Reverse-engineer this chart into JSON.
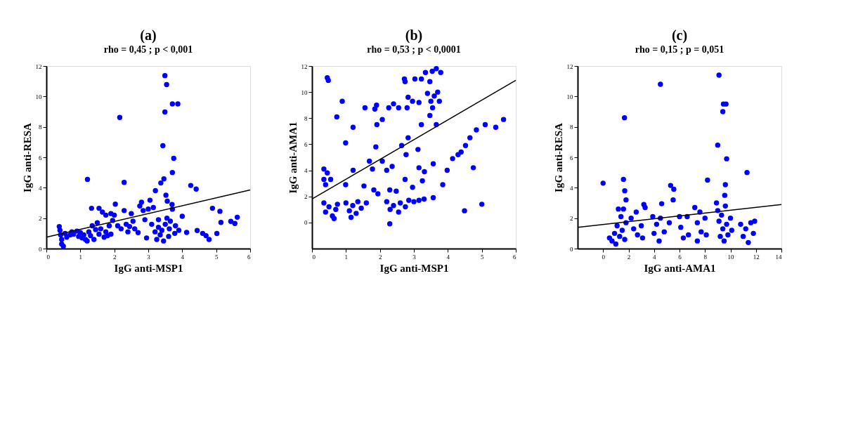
{
  "chart_data": [
    {
      "type": "scatter",
      "title": "(a)",
      "subtitle": "rho = 0,45   ; p < 0,001",
      "xlabel": "IgG anti-MSP1",
      "ylabel": "IgG anti-RESA",
      "xlim": [
        0,
        6
      ],
      "ylim": [
        0,
        12
      ],
      "xticks": [
        0,
        1,
        2,
        3,
        4,
        5,
        6
      ],
      "yticks": [
        0,
        2,
        4,
        6,
        8,
        10,
        12
      ],
      "grid": false,
      "series": [
        {
          "marker": "circle",
          "color": "#0000ff",
          "x": [
            0.38,
            0.4,
            0.42,
            0.45,
            0.45,
            0.5,
            0.55,
            0.6,
            0.7,
            0.75,
            0.8,
            0.9,
            0.95,
            1.0,
            1.05,
            1.1,
            1.15,
            1.2,
            1.25,
            1.3,
            1.35,
            1.4,
            1.45,
            1.5,
            1.55,
            1.6,
            1.7,
            1.75,
            1.8,
            1.9,
            1.85,
            1.95,
            1.21,
            1.33,
            1.55,
            1.65,
            1.75,
            1.9,
            2.0,
            2.03,
            2.16,
            2.1,
            2.2,
            2.29,
            2.29,
            2.35,
            2.4,
            2.45,
            2.5,
            2.55,
            2.6,
            2.7,
            2.75,
            2.8,
            2.85,
            2.9,
            2.95,
            3.0,
            3.05,
            3.1,
            3.15,
            3.2,
            3.21,
            3.25,
            3.3,
            3.3,
            3.35,
            3.37,
            3.4,
            3.43,
            3.45,
            3.46,
            3.49,
            3.49,
            3.5,
            3.52,
            3.54,
            3.55,
            3.56,
            3.6,
            3.62,
            3.65,
            3.7,
            3.71,
            3.71,
            3.71,
            3.75,
            3.78,
            3.8,
            3.87,
            3.9,
            4.0,
            4.13,
            4.25,
            4.41,
            4.44,
            4.6,
            4.7,
            4.79,
            4.89,
            5.02,
            5.11,
            5.14,
            5.43,
            5.55,
            5.62
          ],
          "values": [
            1.45,
            1.2,
            0.9,
            0.6,
            0.3,
            0.15,
            1.0,
            0.75,
            0.9,
            1.1,
            0.95,
            1.15,
            0.8,
            1.05,
            0.7,
            0.9,
            0.6,
            0.5,
            1.1,
            0.85,
            1.5,
            0.6,
            1.25,
            1.7,
            0.95,
            1.3,
            0.75,
            1.1,
            0.85,
            0.95,
            1.5,
            1.85,
            4.55,
            2.65,
            2.65,
            2.4,
            2.2,
            2.3,
            2.2,
            2.92,
            8.62,
            1.5,
            1.3,
            4.35,
            2.5,
            1.6,
            1.1,
            1.45,
            2.3,
            1.8,
            1.3,
            1.05,
            2.8,
            3.05,
            2.5,
            1.9,
            0.7,
            2.6,
            3.18,
            1.6,
            2.7,
            1.1,
            3.81,
            0.6,
            1.4,
            1.9,
            0.9,
            4.31,
            1.2,
            6.76,
            0.5,
            4.58,
            8.98,
            11.37,
            1.6,
            3.51,
            10.78,
            2.0,
            3.12,
            0.8,
            1.3,
            1.8,
            2.9,
            2.59,
            5.0,
            9.51,
            5.93,
            1.0,
            1.5,
            9.51,
            1.2,
            2.12,
            1.06,
            4.15,
            3.91,
            1.19,
            1.0,
            0.85,
            0.6,
            2.65,
            0.99,
            2.45,
            1.72,
            1.79,
            1.65,
            2.06
          ]
        },
        {
          "type": "line",
          "color": "#000000",
          "x": [
            0,
            6
          ],
          "values": [
            0.75,
            3.85
          ]
        }
      ]
    },
    {
      "type": "scatter",
      "title": "(b)",
      "subtitle": "rho = 0,53   ; p < 0,0001",
      "xlabel": "IgG anti-MSP1",
      "ylabel": "IgG anti-AMA1",
      "xlim": [
        0,
        6
      ],
      "ylim": [
        -2,
        12
      ],
      "xticks": [
        0,
        1,
        2,
        3,
        4,
        5,
        6
      ],
      "yticks": [
        0,
        2,
        4,
        6,
        8,
        10,
        12
      ],
      "grid": false,
      "series": [
        {
          "marker": "circle",
          "color": "#0000ff",
          "x": [
            0.45,
            0.48,
            0.89,
            0.73,
            1.21,
            0.99,
            1.56,
            1.85,
            1.9,
            1.91,
            2.07,
            1.88,
            2.26,
            2.4,
            2.55,
            2.74,
            2.72,
            2.83,
            2.8,
            2.96,
            3.03,
            3.15,
            3.22,
            3.34,
            3.47,
            3.54,
            3.66,
            3.79,
            3.22,
            3.66,
            3.4,
            3.5,
            3.6,
            3.75,
            3.47,
            3.55,
            3.7,
            2.64,
            2.83,
            2.77,
            3.12,
            1.69,
            1.78,
            2.07,
            2.2,
            2.36,
            1.21,
            0.99,
            1.53,
            2.74,
            1.82,
            1.94,
            2.29,
            2.48,
            2.96,
            3.25,
            3.15,
            3.31,
            3.57,
            3.85,
            3.57,
            3.98,
            4.14,
            4.3,
            4.39,
            4.52,
            4.65,
            4.84,
            5.1,
            5.41,
            5.64,
            4.75,
            4.49,
            5.0,
            2.29,
            0.35,
            0.45,
            0.35,
            0.55,
            0.4,
            0.35,
            0.4,
            0.5,
            0.6,
            0.7,
            0.75,
            0.65,
            1.0,
            1.1,
            1.15,
            1.2,
            1.3,
            1.35,
            1.45,
            1.6,
            2.2,
            2.3,
            2.4,
            2.55,
            2.6,
            2.75,
            2.85,
            3.0,
            3.15,
            3.3
          ],
          "values": [
            11.1,
            10.9,
            9.3,
            8.1,
            7.3,
            6.1,
            8.8,
            8.7,
            9.0,
            7.5,
            7.9,
            5.8,
            8.8,
            9.1,
            8.8,
            10.8,
            11.0,
            9.6,
            8.8,
            9.3,
            11.0,
            9.2,
            11.0,
            11.5,
            10.8,
            11.6,
            11.8,
            11.5,
            7.5,
            7.5,
            9.9,
            9.3,
            9.7,
            9.3,
            8.2,
            8.8,
            10.0,
            5.9,
            6.5,
            5.2,
            5.6,
            4.7,
            4.1,
            4.7,
            4.0,
            4.3,
            4.0,
            2.9,
            2.8,
            3.3,
            2.5,
            2.2,
            2.5,
            2.4,
            2.7,
            3.2,
            4.2,
            3.9,
            4.5,
            2.9,
            1.9,
            4.0,
            4.9,
            5.2,
            5.4,
            5.9,
            6.5,
            7.1,
            7.5,
            7.3,
            7.9,
            4.2,
            0.9,
            1.4,
            -0.1,
            4.1,
            3.8,
            3.3,
            3.3,
            2.9,
            1.5,
            0.8,
            1.2,
            0.5,
            1.0,
            1.4,
            0.3,
            1.5,
            0.9,
            0.4,
            1.3,
            0.7,
            1.6,
            1.1,
            1.5,
            1.6,
            1.0,
            1.3,
            0.8,
            1.5,
            1.2,
            1.7,
            1.6,
            1.7,
            1.8
          ]
        },
        {
          "type": "line",
          "color": "#000000",
          "x": [
            0,
            6
          ],
          "values": [
            1.8,
            10.9
          ]
        }
      ]
    },
    {
      "type": "scatter",
      "title": "(c)",
      "subtitle": "rho = 0,15   ; p = 0,051",
      "xlabel": "IgG anti-AMA1",
      "ylabel": "IgG anti-RESA",
      "xlim": [
        -2,
        14
      ],
      "ylim": [
        0,
        12
      ],
      "xticks": [
        0,
        2,
        4,
        6,
        8,
        10,
        12,
        14
      ],
      "yticks": [
        0,
        2,
        4,
        6,
        8,
        10,
        12
      ],
      "grid": false,
      "series": [
        {
          "marker": "circle",
          "color": "#0000ff",
          "x": [
            0.0,
            1.68,
            4.5,
            9.1,
            9.45,
            9.65,
            9.4,
            9.0,
            9.7,
            11.3,
            8.2,
            9.6,
            1.6,
            1.7,
            1.8,
            5.3,
            5.55,
            5.5,
            4.6,
            3.2,
            9.55,
            0.5,
            0.7,
            0.9,
            1.0,
            1.1,
            1.2,
            1.3,
            1.4,
            1.5,
            1.6,
            1.7,
            1.8,
            2.2,
            2.4,
            2.6,
            2.7,
            3.0,
            3.1,
            3.3,
            3.9,
            4.0,
            4.2,
            4.4,
            4.5,
            4.8,
            5.2,
            6.0,
            6.1,
            6.3,
            6.6,
            6.7,
            7.2,
            7.4,
            7.4,
            7.6,
            7.7,
            8.0,
            8.1,
            8.9,
            9.0,
            9.1,
            9.2,
            9.3,
            9.4,
            9.5,
            9.6,
            9.7,
            9.8,
            10.0,
            10.1,
            10.8,
            11.0,
            11.2,
            11.4,
            11.6,
            11.8,
            11.9
          ],
          "values": [
            4.3,
            8.6,
            10.8,
            11.4,
            9.5,
            9.5,
            9.0,
            6.8,
            5.9,
            5.0,
            4.5,
            4.2,
            4.55,
            3.8,
            3.2,
            4.15,
            3.9,
            3.2,
            2.95,
            2.9,
            3.5,
            0.7,
            0.5,
            1.0,
            0.3,
            1.5,
            2.6,
            0.8,
            2.1,
            1.2,
            2.6,
            0.6,
            1.7,
            2.0,
            1.3,
            2.4,
            0.9,
            1.5,
            0.7,
            2.7,
            2.1,
            1.0,
            1.6,
            0.5,
            2.0,
            1.1,
            1.7,
            2.1,
            1.4,
            0.7,
            2.1,
            0.9,
            2.7,
            1.7,
            0.5,
            2.4,
            1.1,
            2.0,
            0.9,
            3.0,
            2.5,
            1.8,
            0.8,
            2.2,
            1.3,
            0.5,
            2.8,
            1.6,
            0.9,
            2.0,
            1.2,
            1.6,
            0.8,
            1.3,
            0.4,
            1.7,
            1.0,
            1.8
          ]
        },
        {
          "type": "line",
          "color": "#000000",
          "x": [
            -2,
            14
          ],
          "values": [
            1.4,
            2.9
          ]
        }
      ]
    }
  ]
}
